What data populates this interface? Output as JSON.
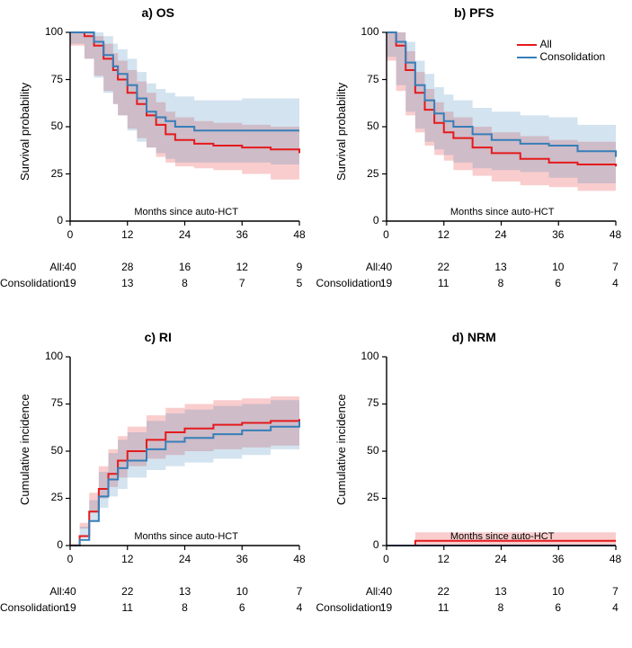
{
  "global": {
    "xlim": [
      0,
      48
    ],
    "ylim": [
      0,
      100
    ],
    "xticks": [
      0,
      12,
      24,
      36,
      48
    ],
    "yticks": [
      0,
      25,
      50,
      75,
      100
    ],
    "xlabel": "Months since auto-HCT",
    "colors": {
      "all_line": "#e41a1c",
      "all_band": "rgba(228,26,28,0.22)",
      "con_line": "#377eb8",
      "con_band": "rgba(55,126,184,0.22)",
      "axis": "#000000",
      "text": "#000000"
    },
    "font": {
      "title_size": 14,
      "axis_size": 13,
      "tick_size": 12,
      "risk_size": 12
    },
    "risk_rows": [
      {
        "label": "All:",
        "key": "all"
      },
      {
        "label": "Consolidation:",
        "key": "con"
      }
    ],
    "legend": [
      {
        "label": "All",
        "color_key": "all_line"
      },
      {
        "label": "Consolidation",
        "color_key": "con_line"
      }
    ]
  },
  "panels": [
    {
      "id": "a",
      "title": "a) OS",
      "ylabel": "Survival probability",
      "show_legend": false,
      "series": {
        "all": {
          "x": [
            0,
            3,
            5,
            7,
            9,
            10,
            12,
            14,
            16,
            18,
            20,
            22,
            26,
            30,
            36,
            42,
            48
          ],
          "y": [
            100,
            98,
            93,
            86,
            80,
            75,
            68,
            62,
            56,
            51,
            46,
            43,
            41,
            40,
            39,
            38,
            36
          ],
          "lo": [
            100,
            93,
            86,
            77,
            69,
            62,
            56,
            49,
            44,
            39,
            34,
            31,
            29,
            28,
            27,
            25,
            22
          ],
          "hi": [
            100,
            100,
            98,
            94,
            89,
            85,
            80,
            74,
            68,
            63,
            58,
            55,
            53,
            52,
            51,
            50,
            50
          ]
        },
        "con": {
          "x": [
            0,
            3,
            5,
            7,
            9,
            10,
            12,
            14,
            16,
            18,
            20,
            22,
            26,
            30,
            36,
            42,
            48
          ],
          "y": [
            100,
            100,
            95,
            88,
            82,
            78,
            72,
            65,
            58,
            55,
            53,
            50,
            48,
            48,
            48,
            48,
            48
          ],
          "lo": [
            100,
            94,
            86,
            76,
            68,
            62,
            56,
            48,
            42,
            39,
            36,
            33,
            31,
            31,
            31,
            31,
            30
          ],
          "hi": [
            100,
            100,
            100,
            98,
            94,
            91,
            86,
            79,
            73,
            70,
            68,
            66,
            64,
            64,
            65,
            65,
            65
          ]
        }
      },
      "risk": {
        "all": [
          40,
          28,
          16,
          12,
          9
        ],
        "con": [
          19,
          13,
          8,
          7,
          5
        ]
      }
    },
    {
      "id": "b",
      "title": "b) PFS",
      "ylabel": "Survival probability",
      "show_legend": true,
      "series": {
        "all": {
          "x": [
            0,
            2,
            4,
            6,
            8,
            10,
            12,
            14,
            18,
            22,
            28,
            34,
            40,
            48
          ],
          "y": [
            100,
            93,
            80,
            68,
            59,
            52,
            47,
            44,
            39,
            36,
            33,
            31,
            30,
            29
          ],
          "lo": [
            100,
            85,
            69,
            56,
            47,
            40,
            35,
            32,
            27,
            24,
            21,
            19,
            18,
            16
          ],
          "hi": [
            100,
            100,
            90,
            79,
            70,
            63,
            58,
            55,
            50,
            47,
            45,
            43,
            42,
            41
          ]
        },
        "con": {
          "x": [
            0,
            2,
            4,
            6,
            8,
            10,
            12,
            14,
            18,
            22,
            28,
            34,
            40,
            48
          ],
          "y": [
            100,
            95,
            84,
            72,
            64,
            57,
            53,
            50,
            46,
            43,
            41,
            40,
            37,
            34
          ],
          "lo": [
            100,
            87,
            72,
            58,
            49,
            42,
            38,
            35,
            31,
            28,
            27,
            26,
            23,
            20
          ],
          "hi": [
            100,
            100,
            95,
            85,
            78,
            71,
            67,
            64,
            60,
            58,
            56,
            55,
            51,
            48
          ]
        }
      },
      "risk": {
        "all": [
          40,
          22,
          13,
          10,
          7
        ],
        "con": [
          19,
          11,
          8,
          6,
          4
        ]
      }
    },
    {
      "id": "c",
      "title": "c) RI",
      "ylabel": "Cumulative incidence",
      "show_legend": false,
      "series": {
        "all": {
          "x": [
            0,
            2,
            4,
            6,
            8,
            10,
            12,
            16,
            20,
            24,
            30,
            36,
            42,
            48
          ],
          "y": [
            0,
            5,
            18,
            30,
            38,
            45,
            50,
            56,
            60,
            62,
            64,
            65,
            66,
            67
          ],
          "lo": [
            0,
            1,
            9,
            18,
            25,
            31,
            36,
            42,
            46,
            48,
            50,
            51,
            52,
            53
          ],
          "hi": [
            0,
            12,
            28,
            42,
            51,
            58,
            63,
            69,
            73,
            75,
            77,
            78,
            79,
            80
          ]
        },
        "con": {
          "x": [
            0,
            2,
            4,
            6,
            8,
            10,
            12,
            16,
            20,
            24,
            30,
            36,
            42,
            48
          ],
          "y": [
            0,
            3,
            13,
            26,
            35,
            41,
            45,
            51,
            55,
            57,
            59,
            61,
            63,
            66
          ],
          "lo": [
            0,
            0,
            4,
            13,
            20,
            26,
            30,
            36,
            40,
            42,
            44,
            46,
            48,
            51
          ],
          "hi": [
            0,
            10,
            24,
            39,
            49,
            56,
            60,
            66,
            70,
            72,
            74,
            75,
            77,
            80
          ]
        }
      },
      "risk": {
        "all": [
          40,
          22,
          13,
          10,
          7
        ],
        "con": [
          19,
          11,
          8,
          6,
          4
        ]
      }
    },
    {
      "id": "d",
      "title": "d) NRM",
      "ylabel": "Cumulative incidence",
      "show_legend": false,
      "series": {
        "all": {
          "x": [
            0,
            6,
            6.01,
            48
          ],
          "y": [
            0,
            0,
            2.5,
            2.5
          ],
          "lo": [
            0,
            0,
            0,
            0
          ],
          "hi": [
            0,
            0,
            7,
            8
          ]
        },
        "con": {
          "x": [
            0,
            48
          ],
          "y": [
            0,
            0
          ],
          "lo": [
            0,
            0
          ],
          "hi": [
            0,
            0
          ]
        }
      },
      "risk": {
        "all": [
          40,
          22,
          13,
          10,
          7
        ],
        "con": [
          19,
          11,
          8,
          6,
          4
        ]
      }
    }
  ]
}
